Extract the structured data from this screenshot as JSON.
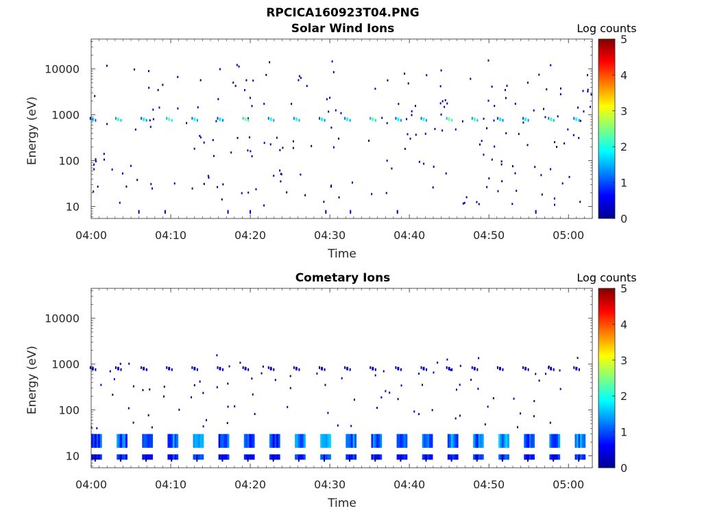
{
  "figure": {
    "title": "RPCICA160923T04.PNG"
  },
  "chart_data": [
    {
      "type": "heatmap",
      "title": "Solar Wind Ions",
      "xlabel": "Time",
      "ylabel": "Energy (eV)",
      "y_scale": "log",
      "ylim": [
        5.5,
        45000
      ],
      "xlim": [
        "04:00",
        "05:03"
      ],
      "xticks": [
        "04:00",
        "04:10",
        "04:20",
        "04:30",
        "04:40",
        "04:50",
        "05:00"
      ],
      "yticks": [
        10,
        100,
        1000,
        10000
      ],
      "colorbar": {
        "label": "Log counts",
        "range": [
          0,
          5
        ],
        "ticks": [
          0,
          1,
          2,
          3,
          4,
          5
        ],
        "colormap": "jet"
      },
      "peaks": {
        "times": [
          "04:00.2",
          "04:03.4",
          "04:06.6",
          "04:09.8",
          "04:13.0",
          "04:16.2",
          "04:19.4",
          "04:22.6",
          "04:25.8",
          "04:29.0",
          "04:32.2",
          "04:35.4",
          "04:38.6",
          "04:41.8",
          "04:45.0",
          "04:48.2",
          "04:51.4",
          "04:54.6",
          "04:57.8",
          "05:01.0"
        ],
        "energy_eV": 800,
        "log_counts": [
          1.6,
          2.2,
          1.9,
          2.4,
          2.0,
          1.8,
          2.6,
          2.0,
          2.1,
          1.9,
          2.0,
          2.3,
          1.9,
          2.0,
          2.5,
          2.2,
          1.8,
          1.9,
          2.1,
          2.0
        ]
      },
      "low_energy_streaks": {
        "times": [
          "04:06.0",
          "04:09.3",
          "04:17.2",
          "04:20.0",
          "04:29.5",
          "04:32.6",
          "04:38.5",
          "04:55.9"
        ],
        "energy_eV": [
          7,
          8
        ]
      }
    },
    {
      "type": "heatmap",
      "title": "Cometary Ions",
      "xlabel": "Time",
      "ylabel": "Energy (eV)",
      "y_scale": "log",
      "ylim": [
        5.5,
        45000
      ],
      "xlim": [
        "04:00",
        "05:03"
      ],
      "xticks": [
        "04:00",
        "04:10",
        "04:20",
        "04:30",
        "04:40",
        "04:50",
        "05:00"
      ],
      "yticks": [
        10,
        100,
        1000,
        10000
      ],
      "colorbar": {
        "label": "Log counts",
        "range": [
          0,
          5
        ],
        "ticks": [
          0,
          1,
          2,
          3,
          4,
          5
        ],
        "colormap": "jet"
      },
      "bands": {
        "times": [
          "04:00.5",
          "04:03.7",
          "04:06.9",
          "04:10.1",
          "04:13.3",
          "04:16.5",
          "04:19.7",
          "04:22.9",
          "04:26.1",
          "04:29.3",
          "04:32.5",
          "04:35.7",
          "04:38.9",
          "04:42.1",
          "04:45.3",
          "04:48.5",
          "04:51.7",
          "04:54.9",
          "04:58.1",
          "05:01.3"
        ],
        "energy_eV": [
          15,
          30
        ],
        "log_counts": [
          0.9,
          1.1,
          1.0,
          1.2,
          1.4,
          1.0,
          1.1,
          1.0,
          1.2,
          1.5,
          1.2,
          1.1,
          1.0,
          1.1,
          1.3,
          1.2,
          1.4,
          1.0,
          1.2,
          1.3
        ]
      },
      "peaks": {
        "times": [
          "04:00.2",
          "04:03.4",
          "04:06.6",
          "04:09.8",
          "04:13.0",
          "04:16.2",
          "04:19.4",
          "04:22.6",
          "04:25.8",
          "04:29.0",
          "04:32.2",
          "04:35.4",
          "04:38.6",
          "04:41.8",
          "04:45.0",
          "04:48.2",
          "04:51.4",
          "04:54.6",
          "04:57.8",
          "05:01.0"
        ],
        "energy_eV": 800,
        "log_counts": [
          0.4,
          0.4,
          0.4,
          0.4,
          0.4,
          0.4,
          0.4,
          0.4,
          0.4,
          0.4,
          0.4,
          0.4,
          0.4,
          0.4,
          0.4,
          0.4,
          0.4,
          0.4,
          0.4,
          0.4
        ]
      }
    }
  ]
}
